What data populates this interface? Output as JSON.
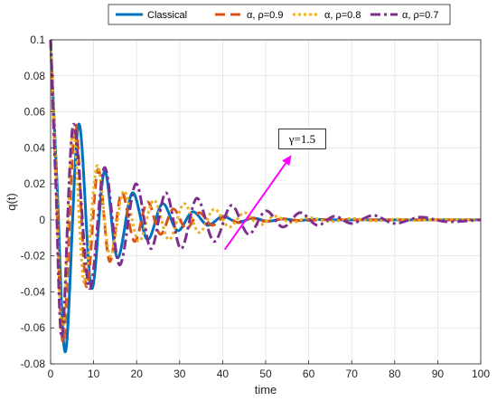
{
  "chart_data": {
    "type": "line",
    "xlabel": "time",
    "ylabel": "q(t)",
    "xlim": [
      0,
      100
    ],
    "ylim": [
      -0.08,
      0.1
    ],
    "xticks": [
      0,
      10,
      20,
      30,
      40,
      50,
      60,
      70,
      80,
      90,
      100
    ],
    "yticks": [
      -0.08,
      -0.06,
      -0.04,
      -0.02,
      0,
      0.02,
      0.04,
      0.06,
      0.08,
      0.1
    ],
    "xtick_labels": [
      "0",
      "10",
      "20",
      "30",
      "40",
      "50",
      "60",
      "70",
      "80",
      "90",
      "100"
    ],
    "ytick_labels": [
      "-0.08",
      "-0.06",
      "-0.04",
      "-0.02",
      "0",
      "0.02",
      "0.04",
      "0.06",
      "0.08",
      "0.1"
    ],
    "grid": true,
    "legend_position": "top-outside",
    "series": [
      {
        "name": "Classical",
        "color": "#0072BD",
        "style": "solid",
        "x": [
          0,
          1.5,
          3.5,
          6.5,
          9.5,
          12.5,
          15.5,
          19.0,
          22.5,
          26.0,
          29.5,
          33.0,
          36.5,
          40.0,
          43.5,
          47.0,
          50.5,
          54.0,
          57.5,
          61.0,
          65.0,
          70.0,
          80.0,
          90.0,
          100.0
        ],
        "y": [
          0.1,
          0.02,
          -0.073,
          0.053,
          -0.038,
          0.027,
          -0.021,
          0.015,
          -0.011,
          0.009,
          -0.006,
          0.0045,
          -0.003,
          0.002,
          -0.0015,
          0.001,
          -0.0008,
          0.0005,
          -0.0004,
          0.0003,
          0.0,
          0.0,
          0.0,
          0.0,
          0.0
        ]
      },
      {
        "name": "α, ρ=0.9",
        "color": "#D95319",
        "style": "dashed",
        "x": [
          0,
          1.3,
          3.0,
          5.7,
          8.3,
          11.0,
          13.7,
          16.5,
          19.5,
          22.5,
          25.5,
          28.5,
          31.5,
          34.5,
          37.5,
          40.5,
          43.5,
          46.5,
          50.0,
          54.0,
          58.0,
          65.0,
          75.0,
          85.0,
          95.0,
          100.0
        ],
        "y": [
          0.1,
          0.02,
          -0.068,
          0.053,
          -0.037,
          0.028,
          -0.023,
          0.015,
          -0.012,
          0.01,
          -0.008,
          0.006,
          -0.005,
          0.004,
          -0.003,
          0.002,
          -0.0015,
          0.001,
          -0.0008,
          0.0006,
          -0.0004,
          0.0002,
          0.0,
          0.0,
          0.0,
          0.0
        ]
      },
      {
        "name": "α, ρ=0.8",
        "color": "#EDB120",
        "style": "dotted",
        "x": [
          0,
          1.2,
          2.8,
          5.2,
          7.8,
          10.8,
          13.8,
          17.0,
          20.5,
          24.0,
          27.5,
          31.0,
          34.5,
          38.0,
          41.5,
          45.0,
          48.5,
          52.0,
          56.0,
          60.0,
          65.0,
          70.0,
          75.0,
          80.0,
          85.0,
          90.0,
          100.0
        ],
        "y": [
          0.1,
          0.03,
          -0.065,
          0.05,
          -0.035,
          0.03,
          -0.02,
          0.016,
          -0.012,
          0.011,
          -0.011,
          0.009,
          -0.007,
          0.006,
          -0.004,
          0.004,
          -0.003,
          0.002,
          -0.0015,
          0.0012,
          -0.001,
          0.0008,
          -0.0006,
          0.0004,
          -0.0003,
          0.0002,
          0.0
        ]
      },
      {
        "name": "α, ρ=0.7",
        "color": "#7E2F8E",
        "style": "dashdot",
        "x": [
          0,
          1.2,
          2.7,
          5.3,
          9.0,
          12.5,
          16.0,
          19.8,
          23.3,
          26.8,
          30.3,
          34.0,
          38.0,
          42.0,
          46.0,
          50.0,
          54.0,
          58.0,
          62.0,
          66.0,
          70.0,
          75.0,
          80.0,
          86.0,
          92.0,
          100.0
        ],
        "y": [
          0.1,
          0.02,
          -0.065,
          0.053,
          -0.038,
          0.029,
          -0.025,
          0.02,
          -0.016,
          0.015,
          -0.016,
          0.012,
          -0.012,
          0.008,
          -0.008,
          0.005,
          -0.004,
          0.004,
          -0.003,
          0.002,
          -0.002,
          0.0025,
          -0.002,
          0.0015,
          -0.001,
          0.0
        ]
      }
    ],
    "annotations": [
      {
        "text": "γ=1.5",
        "arrow_color": "#FF00FF",
        "arrow_from": [
          40.5,
          -0.0165
        ],
        "arrow_to": [
          56.0,
          0.036
        ],
        "text_anchor": [
          58.5,
          0.045
        ]
      }
    ]
  }
}
